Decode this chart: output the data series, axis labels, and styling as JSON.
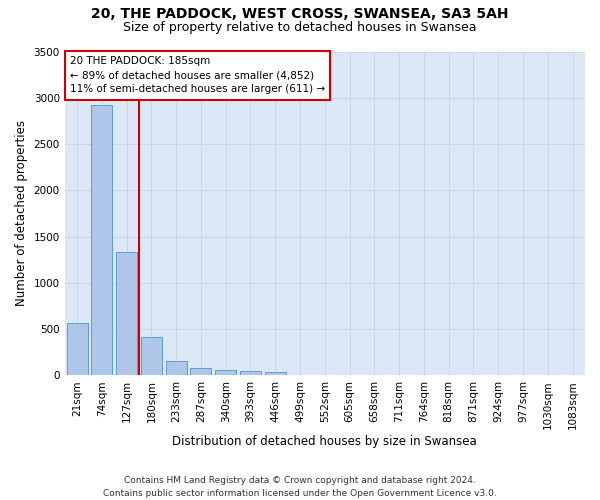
{
  "title_line1": "20, THE PADDOCK, WEST CROSS, SWANSEA, SA3 5AH",
  "title_line2": "Size of property relative to detached houses in Swansea",
  "xlabel": "Distribution of detached houses by size in Swansea",
  "ylabel": "Number of detached properties",
  "bar_labels": [
    "21sqm",
    "74sqm",
    "127sqm",
    "180sqm",
    "233sqm",
    "287sqm",
    "340sqm",
    "393sqm",
    "446sqm",
    "499sqm",
    "552sqm",
    "605sqm",
    "658sqm",
    "711sqm",
    "764sqm",
    "818sqm",
    "871sqm",
    "924sqm",
    "977sqm",
    "1030sqm",
    "1083sqm"
  ],
  "bar_values": [
    570,
    2920,
    1330,
    415,
    155,
    80,
    55,
    45,
    40,
    0,
    0,
    0,
    0,
    0,
    0,
    0,
    0,
    0,
    0,
    0,
    0
  ],
  "bar_color": "#aec6e8",
  "bar_edge_color": "#5a9fd4",
  "highlight_bin": 3,
  "highlight_color": "#cc0000",
  "annotation_text": "20 THE PADDOCK: 185sqm\n← 89% of detached houses are smaller (4,852)\n11% of semi-detached houses are larger (611) →",
  "annotation_box_color": "#ffffff",
  "annotation_box_edge": "#cc0000",
  "ylim": [
    0,
    3500
  ],
  "yticks": [
    0,
    500,
    1000,
    1500,
    2000,
    2500,
    3000,
    3500
  ],
  "grid_color": "#c8d8e8",
  "bg_color": "#dce8f5",
  "footer": "Contains HM Land Registry data © Crown copyright and database right 2024.\nContains public sector information licensed under the Open Government Licence v3.0.",
  "title_fontsize": 10,
  "subtitle_fontsize": 9,
  "xlabel_fontsize": 8.5,
  "ylabel_fontsize": 8.5,
  "tick_fontsize": 7.5,
  "footer_fontsize": 6.5,
  "annot_fontsize": 7.5
}
